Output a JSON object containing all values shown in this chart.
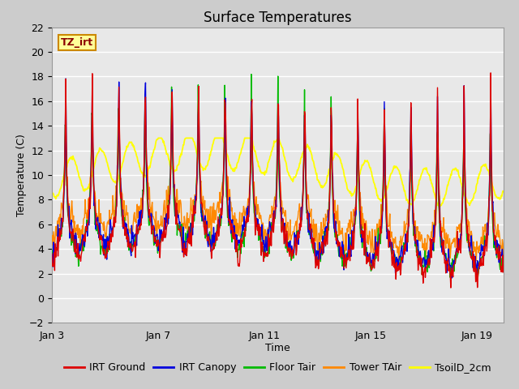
{
  "title": "Surface Temperatures",
  "xlabel": "Time",
  "ylabel": "Temperature (C)",
  "ylim": [
    -2,
    22
  ],
  "background_color": "#cccccc",
  "plot_bg_color": "#e8e8e8",
  "grid_color": "white",
  "tick_labels": [
    "Jan 3",
    "Jan 7",
    "Jan 11",
    "Jan 15",
    "Jan 19"
  ],
  "tick_positions": [
    0,
    4,
    8,
    12,
    16
  ],
  "series": {
    "IRT Ground": {
      "color": "#dd0000",
      "lw": 1.0
    },
    "IRT Canopy": {
      "color": "#0000dd",
      "lw": 1.0
    },
    "Floor Tair": {
      "color": "#00bb00",
      "lw": 1.0
    },
    "Tower TAir": {
      "color": "#ff8800",
      "lw": 1.0
    },
    "TsoilD_2cm": {
      "color": "#ffff00",
      "lw": 1.3
    }
  },
  "annotation": {
    "text": "TZ_irt",
    "color": "#8b0000",
    "fontsize": 9,
    "fontweight": "bold",
    "bg_color": "#ffff99",
    "border_color": "#cc8800"
  },
  "title_fontsize": 12,
  "axis_label_fontsize": 9,
  "tick_fontsize": 9,
  "legend_fontsize": 9
}
